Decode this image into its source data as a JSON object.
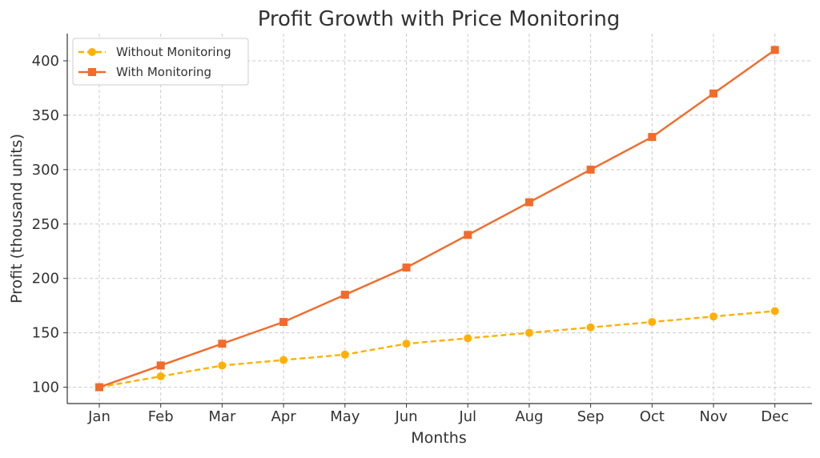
{
  "chart_data": {
    "type": "line",
    "title": "Profit Growth with Price Monitoring",
    "xlabel": "Months",
    "ylabel": "Profit (thousand units)",
    "categories": [
      "Jan",
      "Feb",
      "Mar",
      "Apr",
      "May",
      "Jun",
      "Jul",
      "Aug",
      "Sep",
      "Oct",
      "Nov",
      "Dec"
    ],
    "ylim": [
      85,
      425
    ],
    "yticks": [
      100,
      150,
      200,
      250,
      300,
      350,
      400
    ],
    "grid": true,
    "legend_position": "top-left",
    "series": [
      {
        "name": "Without Monitoring",
        "values": [
          100,
          110,
          120,
          125,
          130,
          140,
          145,
          150,
          155,
          160,
          165,
          170
        ],
        "color": "#FFB000",
        "line_style": "dashed",
        "marker": "circle"
      },
      {
        "name": "With Monitoring",
        "values": [
          100,
          120,
          140,
          160,
          185,
          210,
          240,
          270,
          300,
          330,
          370,
          410
        ],
        "color": "#F26B2A",
        "line_style": "solid",
        "marker": "square"
      }
    ]
  }
}
